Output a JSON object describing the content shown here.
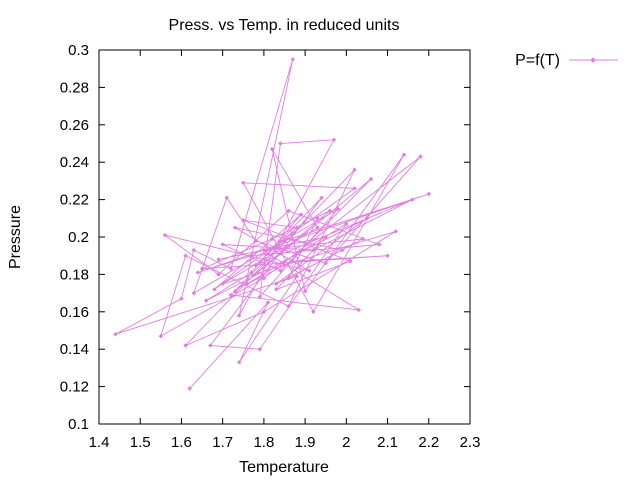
{
  "chart_data": {
    "type": "line",
    "title": "Press. vs Temp. in reduced units",
    "xlabel": "Temperature",
    "ylabel": "Pressure",
    "xlim": [
      1.4,
      2.3
    ],
    "ylim": [
      0.1,
      0.3
    ],
    "x_ticks": [
      "1.4",
      "1.5",
      "1.6",
      "1.7",
      "1.8",
      "1.9",
      "2",
      "2.1",
      "2.2",
      "2.3"
    ],
    "y_ticks": [
      "0.1",
      "0.12",
      "0.14",
      "0.16",
      "0.18",
      "0.2",
      "0.22",
      "0.24",
      "0.26",
      "0.28",
      "0.3"
    ],
    "grid": false,
    "legend_position": "outside-top-right",
    "series": [
      {
        "name": "P=f(T)",
        "color": "#e07ee0",
        "marker": "diamond",
        "points": [
          [
            1.62,
            0.119
          ],
          [
            1.81,
            0.165
          ],
          [
            1.74,
            0.133
          ],
          [
            1.88,
            0.179
          ],
          [
            1.44,
            0.148
          ],
          [
            1.6,
            0.167
          ],
          [
            1.63,
            0.193
          ],
          [
            1.72,
            0.183
          ],
          [
            1.87,
            0.295
          ],
          [
            1.74,
            0.158
          ],
          [
            1.97,
            0.252
          ],
          [
            1.84,
            0.25
          ],
          [
            1.79,
            0.168
          ],
          [
            1.98,
            0.215
          ],
          [
            1.63,
            0.17
          ],
          [
            1.71,
            0.221
          ],
          [
            1.78,
            0.198
          ],
          [
            1.95,
            0.186
          ],
          [
            2.18,
            0.243
          ],
          [
            1.8,
            0.178
          ],
          [
            1.55,
            0.147
          ],
          [
            1.61,
            0.19
          ],
          [
            1.86,
            0.163
          ],
          [
            2.02,
            0.236
          ],
          [
            1.61,
            0.142
          ],
          [
            1.8,
            0.16
          ],
          [
            2.12,
            0.203
          ],
          [
            1.7,
            0.175
          ],
          [
            1.93,
            0.205
          ],
          [
            1.82,
            0.247
          ],
          [
            1.9,
            0.171
          ],
          [
            2.14,
            0.244
          ],
          [
            1.92,
            0.16
          ],
          [
            1.75,
            0.229
          ],
          [
            2.02,
            0.226
          ],
          [
            1.68,
            0.172
          ],
          [
            1.89,
            0.212
          ],
          [
            1.77,
            0.181
          ],
          [
            1.66,
            0.166
          ],
          [
            2.05,
            0.21
          ],
          [
            1.83,
            0.175
          ],
          [
            1.99,
            0.193
          ],
          [
            1.73,
            0.205
          ],
          [
            1.91,
            0.182
          ],
          [
            1.56,
            0.201
          ],
          [
            1.69,
            0.18
          ],
          [
            1.86,
            0.214
          ],
          [
            2.08,
            0.196
          ],
          [
            1.77,
            0.19
          ],
          [
            1.64,
            0.181
          ],
          [
            2.2,
            0.223
          ],
          [
            1.85,
            0.198
          ],
          [
            1.72,
            0.169
          ],
          [
            2.03,
            0.161
          ],
          [
            1.81,
            0.191
          ],
          [
            1.94,
            0.221
          ],
          [
            1.67,
            0.142
          ],
          [
            1.79,
            0.14
          ],
          [
            2.0,
            0.207
          ],
          [
            1.76,
            0.175
          ],
          [
            1.87,
            0.187
          ],
          [
            2.1,
            0.19
          ],
          [
            1.65,
            0.183
          ],
          [
            1.82,
            0.199
          ],
          [
            1.96,
            0.214
          ],
          [
            1.73,
            0.171
          ],
          [
            2.06,
            0.231
          ],
          [
            1.84,
            0.182
          ],
          [
            1.7,
            0.196
          ],
          [
            1.92,
            0.193
          ],
          [
            2.16,
            0.22
          ],
          [
            1.78,
            0.185
          ],
          [
            1.88,
            0.205
          ],
          [
            1.75,
            0.209
          ],
          [
            2.01,
            0.187
          ],
          [
            1.83,
            0.172
          ],
          [
            1.95,
            0.2
          ],
          [
            1.69,
            0.188
          ],
          [
            1.8,
            0.193
          ],
          [
            2.04,
            0.199
          ],
          [
            1.86,
            0.178
          ],
          [
            1.93,
            0.21
          ]
        ]
      }
    ]
  }
}
